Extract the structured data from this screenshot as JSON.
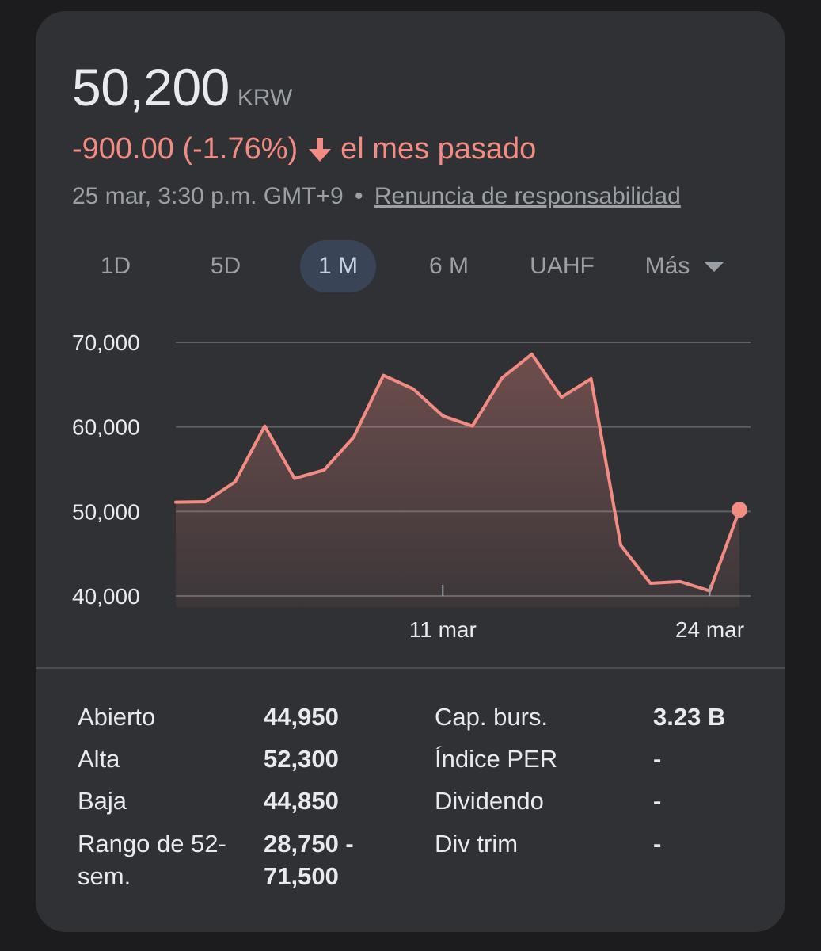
{
  "quote": {
    "price": "50,200",
    "currency": "KRW",
    "change": "-900.00 (-1.76%)",
    "period": "el mes pasado",
    "timestamp": "25 mar, 3:30 p.m. GMT+9",
    "separator": "•",
    "disclaimer": "Renuncia de responsabilidad"
  },
  "tabs": [
    {
      "label": "1D"
    },
    {
      "label": "5D"
    },
    {
      "label": "1 M",
      "active": true
    },
    {
      "label": "6 M"
    },
    {
      "label": "UAHF"
    },
    {
      "label": "Más"
    }
  ],
  "colors": {
    "line": "#f28b82",
    "grid": "#5f6368",
    "text": "#e8eaed",
    "muted": "#9aa0a6",
    "active_tab_bg": "#394457"
  },
  "chart_data": {
    "type": "area",
    "y_ticks": [
      "70,000",
      "60,000",
      "50,000",
      "40,000"
    ],
    "x_ticks": [
      "11 mar",
      "24 mar"
    ],
    "ylim": [
      40000,
      70000
    ],
    "grid": true,
    "values": [
      51100,
      51150,
      53500,
      60100,
      53900,
      54900,
      58800,
      66100,
      64500,
      61300,
      60100,
      65800,
      68600,
      63500,
      65700,
      46000,
      41500,
      41700,
      40600,
      50200
    ]
  },
  "stats": {
    "left": [
      {
        "label": "Abierto",
        "value": "44,950"
      },
      {
        "label": "Alta",
        "value": "52,300"
      },
      {
        "label": "Baja",
        "value": "44,850"
      },
      {
        "label": "Rango de 52-\nsem.",
        "value": "28,750 -\n71,500"
      }
    ],
    "right": [
      {
        "label": "Cap. burs.",
        "value": "3.23 B"
      },
      {
        "label": "Índice PER",
        "value": "-"
      },
      {
        "label": "Dividendo",
        "value": "-"
      },
      {
        "label": "Div trim",
        "value": "-"
      }
    ]
  }
}
